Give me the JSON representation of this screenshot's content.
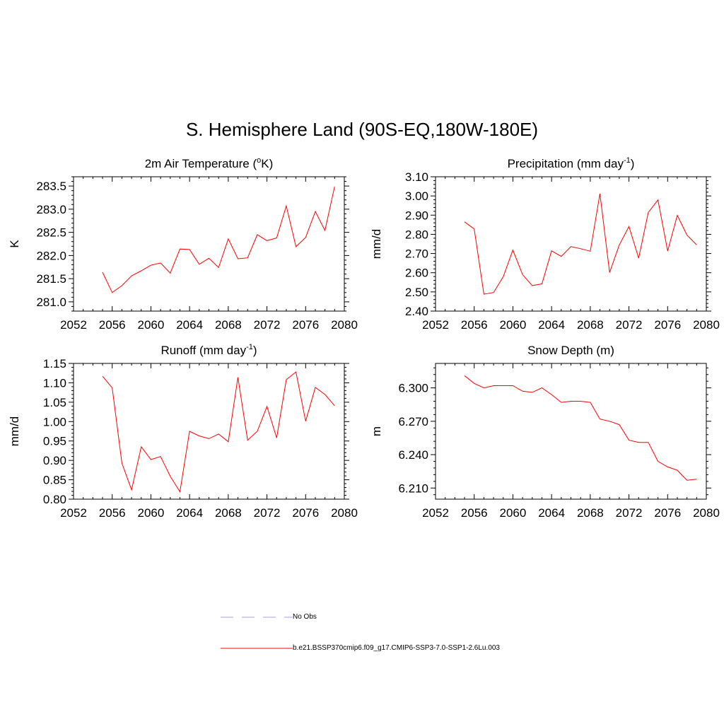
{
  "figure_title": "S. Hemisphere Land (90S-EQ,180W-180E)",
  "legend": {
    "items": [
      {
        "label": "No Obs",
        "color": "#a0a0e0",
        "dash": true
      },
      {
        "label": "b.e21.BSSP370cmip6.f09_g17.CMIP6-SSP3-7.0-SSP1-2.6Lu.003",
        "color": "#ff0000",
        "dash": false
      }
    ]
  },
  "chart_data": [
    {
      "type": "line",
      "title": "2m Air Temperature (",
      "title_sup": "o",
      "title_tail": "K)",
      "ylabel": "K",
      "xlim": [
        2052,
        2080
      ],
      "xticks": [
        "2052",
        "2056",
        "2060",
        "2064",
        "2068",
        "2072",
        "2076",
        "2080"
      ],
      "ylim": [
        280.8,
        283.7
      ],
      "yticks": [
        "281.0",
        "281.5",
        "282.0",
        "282.5",
        "283.0",
        "283.5"
      ],
      "series": [
        {
          "color": "#ff0000",
          "x": [
            2055,
            2056,
            2057,
            2058,
            2059,
            2060,
            2061,
            2062,
            2063,
            2064,
            2065,
            2066,
            2067,
            2068,
            2069,
            2070,
            2071,
            2072,
            2073,
            2074,
            2075,
            2076,
            2077,
            2078,
            2079
          ],
          "y": [
            281.64,
            281.2,
            281.35,
            281.56,
            281.67,
            281.79,
            281.84,
            281.62,
            282.14,
            282.13,
            281.81,
            281.94,
            281.74,
            282.36,
            281.93,
            281.95,
            282.45,
            282.32,
            282.38,
            283.07,
            282.19,
            282.39,
            282.95,
            282.54,
            283.49
          ]
        }
      ]
    },
    {
      "type": "line",
      "title": "Precipitation (mm day",
      "title_sup": "-1",
      "title_tail": ")",
      "ylabel": "mm/d",
      "xlim": [
        2052,
        2080
      ],
      "xticks": [
        "2052",
        "2056",
        "2060",
        "2064",
        "2068",
        "2072",
        "2076",
        "2080"
      ],
      "ylim": [
        2.4,
        3.1
      ],
      "yticks": [
        "2.40",
        "2.50",
        "2.60",
        "2.70",
        "2.80",
        "2.90",
        "3.00",
        "3.10"
      ],
      "series": [
        {
          "color": "#ff0000",
          "x": [
            2055,
            2056,
            2057,
            2058,
            2059,
            2060,
            2061,
            2062,
            2063,
            2064,
            2065,
            2066,
            2067,
            2068,
            2069,
            2070,
            2071,
            2072,
            2073,
            2074,
            2075,
            2076,
            2077,
            2078,
            2079
          ],
          "y": [
            2.865,
            2.828,
            2.488,
            2.497,
            2.579,
            2.718,
            2.59,
            2.533,
            2.542,
            2.714,
            2.685,
            2.736,
            2.725,
            2.712,
            3.012,
            2.601,
            2.745,
            2.841,
            2.676,
            2.914,
            2.979,
            2.713,
            2.899,
            2.796,
            2.745
          ]
        }
      ]
    },
    {
      "type": "line",
      "title": "Runoff (mm day",
      "title_sup": "-1",
      "title_tail": ")",
      "ylabel": "mm/d",
      "xlim": [
        2052,
        2080
      ],
      "xticks": [
        "2052",
        "2056",
        "2060",
        "2064",
        "2068",
        "2072",
        "2076",
        "2080"
      ],
      "ylim": [
        0.8,
        1.15
      ],
      "yticks": [
        "0.80",
        "0.85",
        "0.90",
        "0.95",
        "1.00",
        "1.05",
        "1.10",
        "1.15"
      ],
      "series": [
        {
          "color": "#ff0000",
          "x": [
            2055,
            2056,
            2057,
            2058,
            2059,
            2060,
            2061,
            2062,
            2063,
            2064,
            2065,
            2066,
            2067,
            2068,
            2069,
            2070,
            2071,
            2072,
            2073,
            2074,
            2075,
            2076,
            2077,
            2078,
            2079
          ],
          "y": [
            1.117,
            1.087,
            0.893,
            0.824,
            0.935,
            0.902,
            0.91,
            0.859,
            0.819,
            0.975,
            0.963,
            0.956,
            0.968,
            0.948,
            1.114,
            0.952,
            0.975,
            1.039,
            0.958,
            1.108,
            1.128,
            1.001,
            1.088,
            1.07,
            1.041
          ]
        }
      ]
    },
    {
      "type": "line",
      "title": "Snow Depth (m)",
      "title_sup": "",
      "title_tail": "",
      "ylabel": "m",
      "xlim": [
        2052,
        2080
      ],
      "xticks": [
        "2052",
        "2056",
        "2060",
        "2064",
        "2068",
        "2072",
        "2076",
        "2080"
      ],
      "ylim": [
        6.2,
        6.322
      ],
      "yticks": [
        "6.210",
        "6.240",
        "6.270",
        "6.300"
      ],
      "series": [
        {
          "color": "#ff0000",
          "x": [
            2055,
            2056,
            2057,
            2058,
            2059,
            2060,
            2061,
            2062,
            2063,
            2064,
            2065,
            2066,
            2067,
            2068,
            2069,
            2070,
            2071,
            2072,
            2073,
            2074,
            2075,
            2076,
            2077,
            2078,
            2079
          ],
          "y": [
            6.311,
            6.304,
            6.3,
            6.302,
            6.302,
            6.302,
            6.297,
            6.296,
            6.3,
            6.294,
            6.287,
            6.288,
            6.288,
            6.287,
            6.272,
            6.27,
            6.267,
            6.253,
            6.251,
            6.251,
            6.234,
            6.229,
            6.226,
            6.217,
            6.218
          ]
        }
      ]
    }
  ]
}
